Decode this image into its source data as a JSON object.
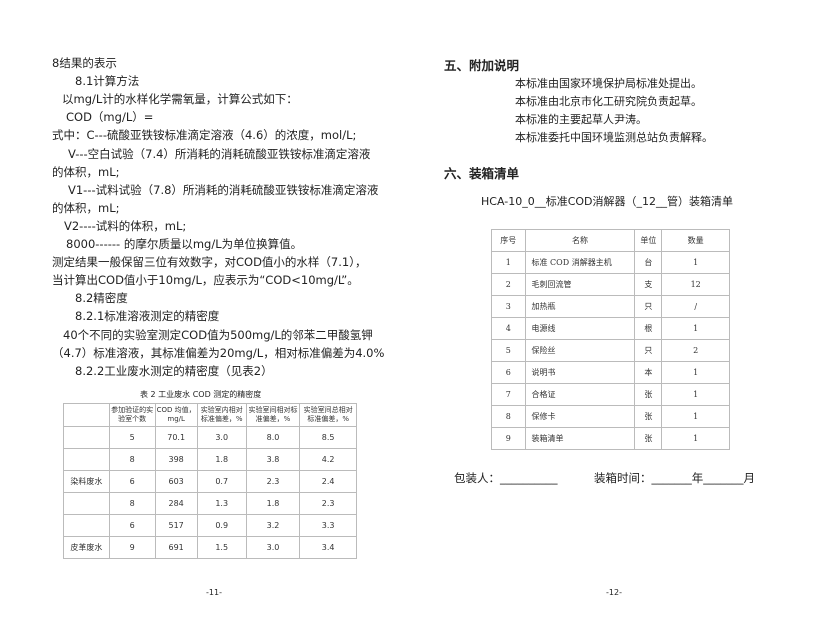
{
  "left_page": {
    "lines": [
      "8结果的表示",
      "8.1计算方法",
      "以mg/L计的水样化学需氧量，计算公式如下：",
      "COD（mg/L）=",
      "式中：C---硫酸亚铁铵标准滴定溶液（4.6）的浓度，mol/L;",
      "V---空白试验（7.4）所消耗的消耗硫酸亚铁铵标准滴定溶液",
      "的体积，mL;",
      "V1---试料试验（7.8）所消耗的消耗硫酸亚铁铵标准滴定溶液",
      "的体积，mL;",
      "V2----试料的体积，mL;",
      "8000------ 的摩尔质量以mg/L为单位换算值。",
      "测定结果一般保留三位有效数字，对COD值小的水样（7.1），",
      "当计算出COD值小于10mg/L，应表示为“COD<10mg/L”。",
      "8.2精密度",
      "8.2.1标准溶液测定的精密度",
      "40个不同的实验室测定COD值为500mg/L的邻苯二甲酸氢钾",
      "（4.7）标准溶液，其标准偏差为20mg/L，相对标准偏差为4.0%",
      "8.2.2工业废水测定的精密度（见表2）"
    ],
    "table_caption": "表 2  工业废水 COD 测定的精密度",
    "table_headers": [
      "",
      "参加验证的实验室个数",
      "COD 均值，mg/L",
      "实验室内相对标准偏差，%",
      "实验室间相对标准偏差，%",
      "实验室间总相对标准偏差，%"
    ],
    "table_rows": [
      [
        "",
        "5",
        "70.1",
        "3.0",
        "8.0",
        "8.5"
      ],
      [
        "",
        "8",
        "398",
        "1.8",
        "3.8",
        "4.2"
      ],
      [
        "染料废水",
        "6",
        "603",
        "0.7",
        "2.3",
        "2.4"
      ],
      [
        "",
        "8",
        "284",
        "1.3",
        "1.8",
        "2.3"
      ],
      [
        "",
        "6",
        "517",
        "0.9",
        "3.2",
        "3.3"
      ],
      [
        "皮革废水",
        "9",
        "691",
        "1.5",
        "3.0",
        "3.4"
      ]
    ],
    "page_number": "-11-"
  },
  "right_page": {
    "section5_title": "五、附加说明",
    "section5_lines": [
      "本标准由国家环境保护局标准处提出。",
      "本标准由北京市化工研究院负责起草。",
      "本标准的主要起草人尹涛。",
      "本标准委托中国环境监测总站负责解释。"
    ],
    "section6_title": "六、装箱清单",
    "packing_title": "HCA-10_0__标准COD消解器（_12__管）装箱清单",
    "table_headers": [
      "序号",
      "名称",
      "单位",
      "数量"
    ],
    "table_rows": [
      [
        "1",
        "标准 COD 消解器主机",
        "台",
        "1"
      ],
      [
        "2",
        "毛刺回流管",
        "支",
        "12"
      ],
      [
        "3",
        "加热瓶",
        "只",
        "/"
      ],
      [
        "4",
        "电源线",
        "根",
        "1"
      ],
      [
        "5",
        "保险丝",
        "只",
        "2"
      ],
      [
        "6",
        "说明书",
        "本",
        "1"
      ],
      [
        "7",
        "合格证",
        "张",
        "1"
      ],
      [
        "8",
        "保修卡",
        "张",
        "1"
      ],
      [
        "9",
        "装箱清单",
        "张",
        "1"
      ]
    ],
    "packer_label": "包装人：__________",
    "pack_time_label": "装箱时间：_______年_______月",
    "page_number": "-12-"
  }
}
